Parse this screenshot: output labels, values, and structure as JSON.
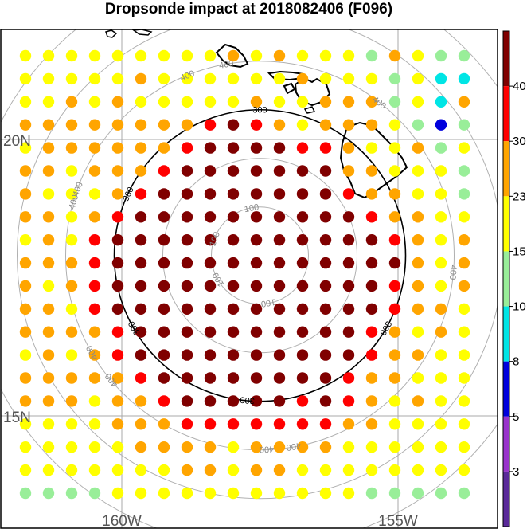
{
  "title": "Dropsonde impact at 2018082406 (F096)",
  "map": {
    "lat_labels": [
      {
        "text": "20N",
        "lat": 20
      },
      {
        "text": "15N",
        "lat": 15
      }
    ],
    "lon_labels": [
      {
        "text": "160W",
        "lon": -160
      },
      {
        "text": "155W",
        "lon": -155
      }
    ],
    "center": {
      "lat": 17.9,
      "lon": -157.5
    },
    "range_rings": [
      {
        "value": 100,
        "label": "100",
        "style": "grey"
      },
      {
        "value": 200,
        "label": "",
        "style": "grey"
      },
      {
        "value": 300,
        "label": "300",
        "style": "black"
      },
      {
        "value": 400,
        "label": "400",
        "style": "grey"
      }
    ]
  },
  "colorbar": {
    "labels": [
      "3",
      "5",
      "8",
      "10",
      "15",
      "23",
      "30",
      "40"
    ],
    "colors": [
      "#5a2a9a",
      "#9933cc",
      "#0000dd",
      "#00e5e5",
      "#99ee99",
      "#ffff00",
      "#ffa500",
      "#ff0000",
      "#800000"
    ],
    "color_names": [
      "dark purple",
      "purple",
      "blue",
      "cyan",
      "light green",
      "yellow",
      "orange",
      "red",
      "dark red"
    ]
  },
  "chart_data": {
    "type": "scatter",
    "title": "Dropsonde impact at 2018082406 (F096)",
    "description_of_grid": "20 columns x 20 rows of colored dots; value = color class index 0..8 (see colorbar.colors)",
    "grid_rows": [
      "55555555565655546544",
      "55555655555565554533",
      "55656555556556664536",
      "66666666787656665424",
      "56666667888877655645",
      "66566678888888665554",
      "65556788888888766554",
      "66567888888888876655",
      "56578888888888887656",
      "66678888888888888656",
      "65678888888888887656",
      "66578888888888887665",
      "66667888888888876565",
      "56567888888888876655",
      "66666788888888766555",
      "66656678888878765655",
      "55556667777777665555",
      "55555666656666555555",
      "55555556656655555555",
      "44445555555555544444"
    ]
  }
}
